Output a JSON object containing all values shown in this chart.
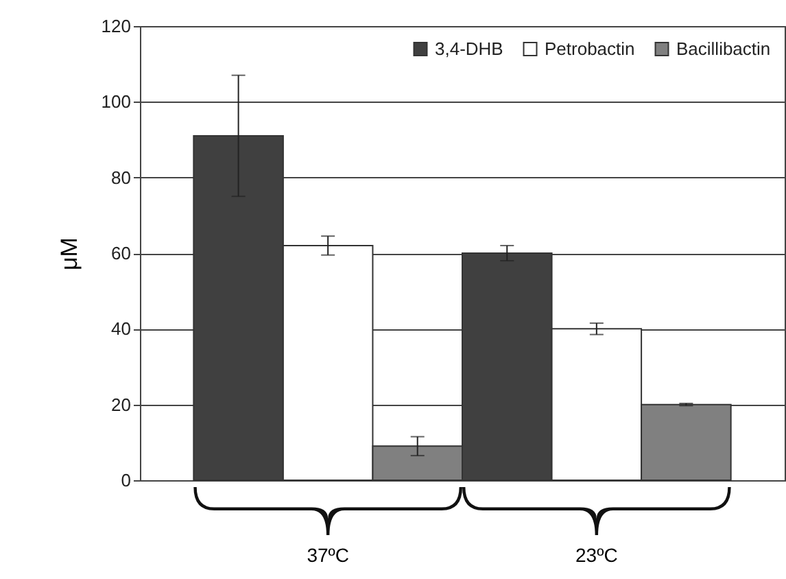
{
  "chart_data": {
    "type": "bar",
    "ylabel": "μM",
    "categories": [
      "37ºC",
      "23ºC"
    ],
    "series": [
      {
        "name": "3,4-DHB",
        "color": "#404040",
        "values": [
          91,
          60
        ],
        "errors": [
          16,
          2
        ]
      },
      {
        "name": "Petrobactin",
        "color": "#ffffff",
        "values": [
          62,
          40
        ],
        "errors": [
          2.5,
          1.5
        ]
      },
      {
        "name": "Bacillibactin",
        "color": "#808080",
        "values": [
          9,
          20
        ],
        "errors": [
          2.5,
          0.3
        ]
      }
    ],
    "ylim": [
      0,
      120
    ],
    "yticks": [
      0,
      20,
      40,
      60,
      80,
      100,
      120
    ],
    "grid": "y",
    "legend": "top right"
  }
}
